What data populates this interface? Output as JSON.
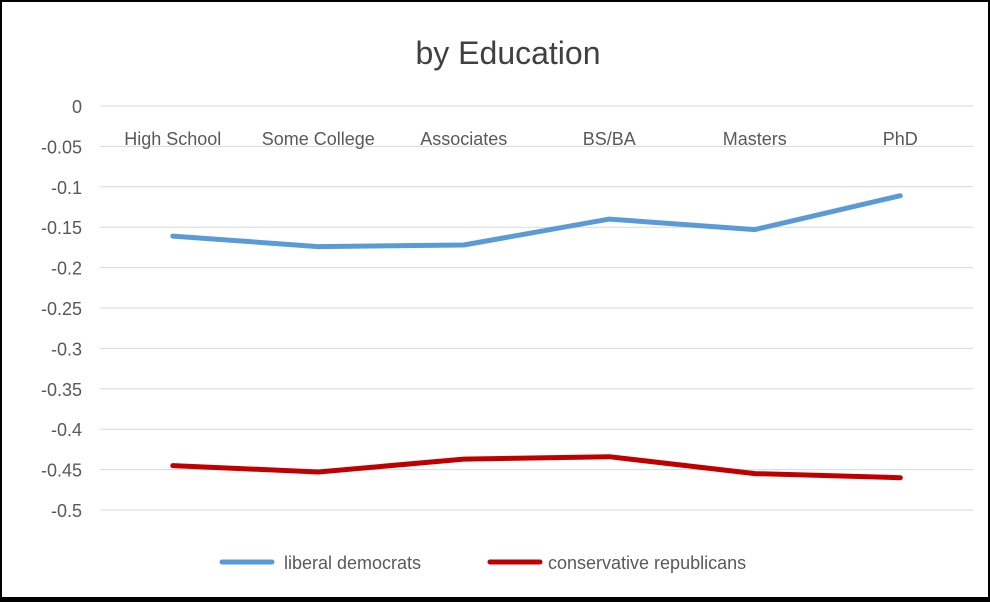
{
  "chart_data": {
    "type": "line",
    "title": "by Education",
    "xlabel": "",
    "ylabel": "",
    "categories": [
      "High School",
      "Some College",
      "Associates",
      "BS/BA",
      "Masters",
      "PhD"
    ],
    "ylim": [
      -0.5,
      0
    ],
    "yticks": [
      0,
      -0.05,
      -0.1,
      -0.15,
      -0.2,
      -0.25,
      -0.3,
      -0.35,
      -0.4,
      -0.45,
      -0.5
    ],
    "ytick_labels": [
      "0",
      "-0.05",
      "-0.1",
      "-0.15",
      "-0.2",
      "-0.25",
      "-0.3",
      "-0.35",
      "-0.4",
      "-0.45",
      "-0.5"
    ],
    "grid": true,
    "x_axis_labels_position": "top",
    "legend_position": "bottom",
    "series": [
      {
        "name": "liberal democrats",
        "color": "#5b9bd5",
        "values": [
          -0.161,
          -0.174,
          -0.172,
          -0.14,
          -0.153,
          -0.111
        ]
      },
      {
        "name": "conservative republicans",
        "color": "#c00000",
        "values": [
          -0.445,
          -0.453,
          -0.437,
          -0.434,
          -0.455,
          -0.46
        ]
      }
    ]
  }
}
